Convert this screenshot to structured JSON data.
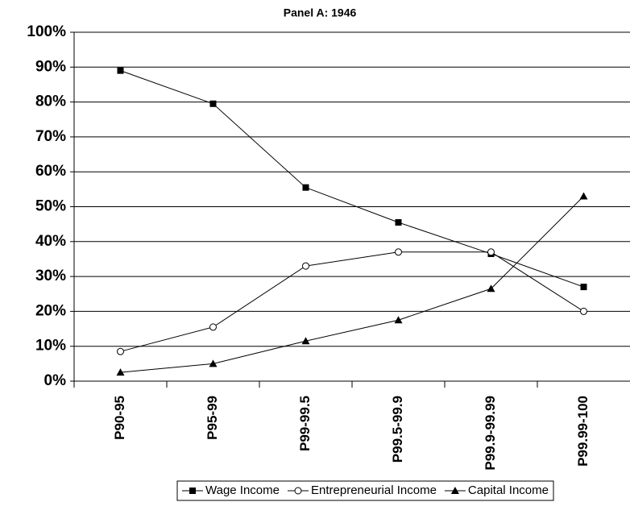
{
  "chart_data": {
    "type": "line",
    "title": "Panel A: 1946",
    "categories": [
      "P90-95",
      "P95-99",
      "P99-99.5",
      "P99.5-99.9",
      "P99.9-99.99",
      "P99.99-100"
    ],
    "series": [
      {
        "name": "Wage Income",
        "color": "#000000",
        "marker": "square",
        "values": [
          89,
          79.5,
          55.5,
          45.5,
          36.5,
          27
        ]
      },
      {
        "name": "Entrepreneurial Income",
        "color": "#000000",
        "marker": "circle",
        "values": [
          8.5,
          15.5,
          33,
          37,
          37,
          20
        ]
      },
      {
        "name": "Capital Income",
        "color": "#000000",
        "marker": "triangle",
        "values": [
          2.5,
          5,
          11.5,
          17.5,
          26.5,
          53
        ]
      }
    ],
    "ylim": [
      0,
      100
    ],
    "yticks": [
      {
        "value": 0,
        "label": "0%"
      },
      {
        "value": 10,
        "label": "10%"
      },
      {
        "value": 20,
        "label": "20%"
      },
      {
        "value": 30,
        "label": "30%"
      },
      {
        "value": 40,
        "label": "40%"
      },
      {
        "value": 50,
        "label": "50%"
      },
      {
        "value": 60,
        "label": "60%"
      },
      {
        "value": 70,
        "label": "70%"
      },
      {
        "value": 80,
        "label": "80%"
      },
      {
        "value": 90,
        "label": "90%"
      },
      {
        "value": 100,
        "label": "100%"
      }
    ],
    "grid": true,
    "legend": "bottom"
  }
}
